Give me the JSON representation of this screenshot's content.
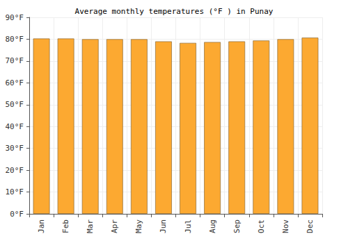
{
  "chart_data": {
    "type": "bar",
    "title": "Average monthly temperatures (°F ) in Punay",
    "categories": [
      "Jan",
      "Feb",
      "Mar",
      "Apr",
      "May",
      "Jun",
      "Jul",
      "Aug",
      "Sep",
      "Oct",
      "Nov",
      "Dec"
    ],
    "values": [
      80.3,
      80.3,
      80.0,
      80.0,
      80.0,
      79.0,
      78.3,
      78.7,
      79.0,
      79.4,
      80.0,
      80.7
    ],
    "color": "#fca931",
    "ylim": [
      0,
      90
    ],
    "yticks": [
      {
        "value": 0,
        "label": "0°F"
      },
      {
        "value": 10,
        "label": "10°F"
      },
      {
        "value": 20,
        "label": "20°F"
      },
      {
        "value": 30,
        "label": "30°F"
      },
      {
        "value": 40,
        "label": "40°F"
      },
      {
        "value": 50,
        "label": "50°F"
      },
      {
        "value": 60,
        "label": "60°F"
      },
      {
        "value": 70,
        "label": "70°F"
      },
      {
        "value": 80,
        "label": "80°F"
      },
      {
        "value": 90,
        "label": "90°F"
      }
    ],
    "grid": true
  }
}
